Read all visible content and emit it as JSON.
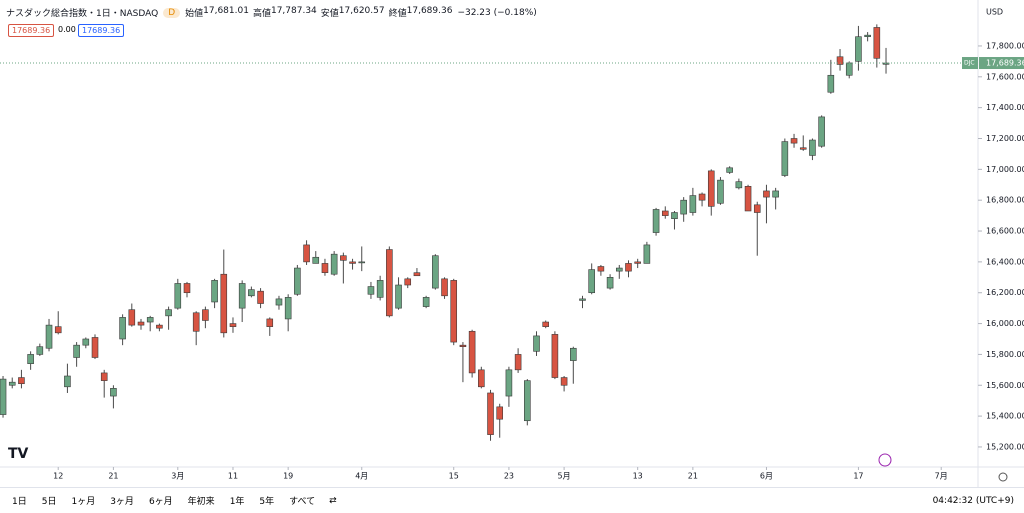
{
  "header": {
    "title": "ナスダック総合指数・1日・NASDAQ",
    "badge": "D",
    "ohlc": [
      {
        "label": "始値",
        "value": "17,681.01"
      },
      {
        "label": "高値",
        "value": "17,787.34"
      },
      {
        "label": "安値",
        "value": "17,620.57"
      },
      {
        "label": "終値",
        "value": "17,689.36"
      }
    ],
    "change": "−32.23 (−0.18%)",
    "bid": "17689.36",
    "spread": "0.00",
    "ask": "17689.36"
  },
  "currency": "USD",
  "symbol_tag": "DJC",
  "last_label": "17,689.36",
  "toolbar": {
    "ranges": [
      "1日",
      "5日",
      "1ヶ月",
      "3ヶ月",
      "6ヶ月",
      "年初来",
      "1年",
      "5年",
      "すべて"
    ],
    "clock": "04:42:32 (UTC+9)"
  },
  "chart_data": {
    "type": "candlestick",
    "up_color": "#6ba583",
    "down_color": "#d75442",
    "xlim": [
      -0.33,
      106
    ],
    "xticks": [
      {
        "value": 6,
        "label": "12"
      },
      {
        "value": 12,
        "label": "21"
      },
      {
        "value": 19,
        "label": "3月"
      },
      {
        "value": 25,
        "label": "11"
      },
      {
        "value": 31,
        "label": "19"
      },
      {
        "value": 39,
        "label": "4月"
      },
      {
        "value": 49,
        "label": "15"
      },
      {
        "value": 55,
        "label": "23"
      },
      {
        "value": 61,
        "label": "5月"
      },
      {
        "value": 69,
        "label": "13"
      },
      {
        "value": 75,
        "label": "21"
      },
      {
        "value": 83,
        "label": "6月"
      },
      {
        "value": 93,
        "label": "17"
      },
      {
        "value": 102,
        "label": "7月"
      }
    ],
    "ylim": [
      15070,
      18098
    ],
    "yticks": [
      {
        "value": 15200,
        "label": "15,200.00"
      },
      {
        "value": 15400,
        "label": "15,400.00"
      },
      {
        "value": 15600,
        "label": "15,600.00"
      },
      {
        "value": 15800,
        "label": "15,800.00"
      },
      {
        "value": 16000,
        "label": "16,000.00"
      },
      {
        "value": 16200,
        "label": "16,200.00"
      },
      {
        "value": 16400,
        "label": "16,400.00"
      },
      {
        "value": 16600,
        "label": "16,600.00"
      },
      {
        "value": 16800,
        "label": "16,800.00"
      },
      {
        "value": 17000,
        "label": "17,000.00"
      },
      {
        "value": 17200,
        "label": "17,200.00"
      },
      {
        "value": 17400,
        "label": "17,400.00"
      },
      {
        "value": 17600,
        "label": "17,600.00"
      },
      {
        "value": 17800,
        "label": "17,800.00"
      }
    ],
    "open": [
      15410,
      15600,
      15650,
      15740,
      15800,
      15840,
      15980,
      15590,
      15780,
      15860,
      15910,
      15680,
      15530,
      15900,
      16090,
      16010,
      16010,
      15990,
      16050,
      16100,
      16260,
      16070,
      16090,
      16140,
      16320,
      16000,
      16100,
      16180,
      16210,
      16030,
      16120,
      16030,
      16190,
      16510,
      16390,
      16390,
      16320,
      16440,
      16400,
      16395,
      16190,
      16170,
      16480,
      16100,
      16290,
      16330,
      16110,
      16230,
      16290,
      16280,
      15860,
      15950,
      15700,
      15550,
      15460,
      15530,
      15800,
      15370,
      15820,
      16010,
      15930,
      15650,
      15760,
      16150,
      16200,
      16370,
      16230,
      16340,
      16390,
      16400,
      16390,
      16590,
      16730,
      16680,
      16710,
      16720,
      16840,
      16990,
      16780,
      16980,
      16880,
      16890,
      16770,
      16860,
      16820,
      16960,
      17200,
      17140,
      17090,
      17150,
      17500,
      17730,
      17610,
      17700,
      17860,
      17920,
      17681.01
    ],
    "high": [
      15660,
      15650,
      15700,
      15820,
      15870,
      16030,
      16080,
      15740,
      15880,
      15910,
      15930,
      15700,
      15600,
      16060,
      16130,
      16030,
      16050,
      16000,
      16110,
      16290,
      16270,
      16080,
      16110,
      16290,
      16480,
      16040,
      16280,
      16240,
      16230,
      16040,
      16180,
      16190,
      16380,
      16540,
      16470,
      16420,
      16470,
      16460,
      16420,
      16500,
      16270,
      16310,
      16500,
      16300,
      16300,
      16360,
      16180,
      16450,
      16300,
      16290,
      15880,
      15960,
      15720,
      15570,
      15480,
      15720,
      15840,
      15640,
      15950,
      16020,
      15950,
      15660,
      15850,
      16180,
      16390,
      16380,
      16320,
      16380,
      16410,
      16420,
      16530,
      16750,
      16760,
      16730,
      16820,
      16880,
      16850,
      17000,
      16950,
      17020,
      16940,
      16900,
      16790,
      16900,
      16880,
      17200,
      17230,
      17220,
      17200,
      17350,
      17710,
      17780,
      17700,
      17930,
      17890,
      17940,
      17787.34
    ],
    "low": [
      15390,
      15580,
      15580,
      15700,
      15790,
      15820,
      15930,
      15550,
      15720,
      15840,
      15770,
      15520,
      15450,
      15860,
      15980,
      15960,
      15950,
      15950,
      15960,
      16090,
      16170,
      15860,
      15970,
      16100,
      15910,
      15940,
      16010,
      16170,
      16100,
      15920,
      16090,
      15950,
      16180,
      16380,
      16390,
      16310,
      16310,
      16260,
      16350,
      16340,
      16160,
      16150,
      16040,
      16090,
      16230,
      16310,
      16100,
      16220,
      16160,
      15860,
      15620,
      15650,
      15580,
      15240,
      15260,
      15460,
      15680,
      15340,
      15790,
      15970,
      15640,
      15560,
      15610,
      16100,
      16190,
      16310,
      16220,
      16290,
      16300,
      16360,
      16390,
      16570,
      16680,
      16610,
      16660,
      16700,
      16760,
      16700,
      16770,
      16970,
      16870,
      16730,
      16440,
      16650,
      16740,
      16950,
      17140,
      17120,
      17060,
      17140,
      17490,
      17640,
      17590,
      17640,
      17830,
      17660,
      17620.57
    ],
    "close": [
      15640,
      15620,
      15610,
      15800,
      15850,
      15990,
      15940,
      15660,
      15860,
      15900,
      15780,
      15630,
      15580,
      16040,
      15990,
      15990,
      16040,
      15970,
      16090,
      16260,
      16200,
      15950,
      16020,
      16280,
      15940,
      15980,
      16260,
      16220,
      16130,
      15980,
      16160,
      16170,
      16360,
      16400,
      16430,
      16330,
      16450,
      16410,
      16390,
      16400,
      16240,
      16280,
      16050,
      16250,
      16250,
      16310,
      16170,
      16440,
      16180,
      15880,
      15850,
      15680,
      15590,
      15280,
      15380,
      15700,
      15700,
      15630,
      15920,
      15980,
      15650,
      15600,
      15840,
      16160,
      16350,
      16340,
      16300,
      16360,
      16340,
      16390,
      16510,
      16740,
      16700,
      16720,
      16800,
      16830,
      16800,
      16760,
      16930,
      17010,
      16920,
      16730,
      16720,
      16820,
      16860,
      17180,
      17170,
      17130,
      17190,
      17340,
      17610,
      17680,
      17690,
      17860,
      17870,
      17720,
      17689.36
    ]
  }
}
